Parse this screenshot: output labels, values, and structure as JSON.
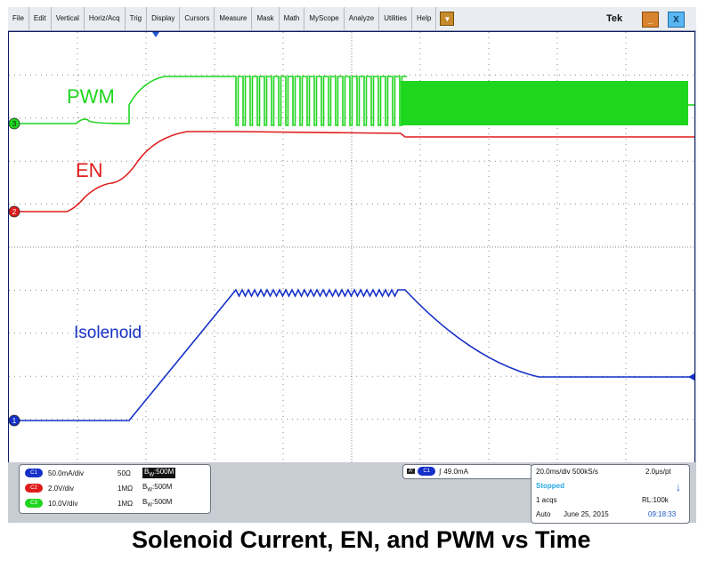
{
  "menu": {
    "items": [
      "File",
      "Edit",
      "Vertical",
      "Horiz/Acq",
      "Trig",
      "Display",
      "Cursors",
      "Measure",
      "Mask",
      "Math",
      "MyScope",
      "Analyze",
      "Utilities",
      "Help"
    ],
    "dropdown_glyph": "▼",
    "brand": "Tek",
    "minimize_glyph": "_",
    "close_glyph": "X"
  },
  "colors": {
    "pwm": "#1fd61f",
    "en": "#e01c1c",
    "isolenoid": "#1430c8",
    "grid": "#8a8a8a",
    "frame": "#0d1e6a"
  },
  "traces": {
    "pwm_label": "PWM",
    "en_label": "EN",
    "isolenoid_label": "Isolenoid",
    "markers": {
      "ch1": "1",
      "ch2": "2",
      "ch3": "3"
    }
  },
  "channels": [
    {
      "chip": "C1",
      "color": "#1430c8",
      "scale": "50.0mA/div",
      "impedance": "50Ω",
      "bw_prefix": "B",
      "bw_sub": "W",
      "bw": ":500M",
      "bw_highlight": true
    },
    {
      "chip": "C2",
      "color": "#e01c1c",
      "scale": "2.0V/div",
      "impedance": "1MΩ",
      "bw_prefix": "B",
      "bw_sub": "W",
      "bw": ":500M",
      "bw_highlight": false
    },
    {
      "chip": "C3",
      "color": "#1fd61f",
      "scale": "10.0V/div",
      "impedance": "1MΩ",
      "bw_prefix": "B",
      "bw_sub": "W",
      "bw": ":500M",
      "bw_highlight": false
    }
  ],
  "trigger": {
    "mode_chip": "A'",
    "source_chip": "C1",
    "slope_glyph": "∫",
    "level": "49.0mA"
  },
  "timebase": {
    "scale": "20.0ms/div 500kS/s",
    "resolution": "2.0μs/pt",
    "state": "Stopped",
    "arrow": "↓",
    "acqs": "1 acqs",
    "record_length": "RL:100k",
    "mode": "Auto",
    "date": "June 25, 2015",
    "time": "09:18:33"
  },
  "caption": "Solenoid Current, EN, and PWM vs Time"
}
